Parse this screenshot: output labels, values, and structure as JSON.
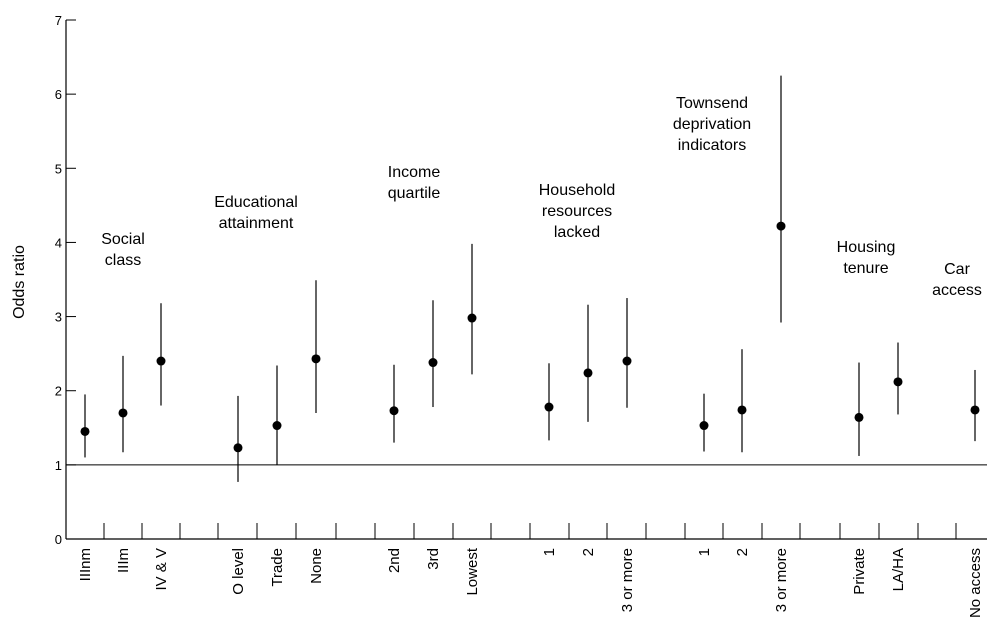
{
  "chart_data": {
    "type": "scatter",
    "title": "",
    "xlabel": "",
    "ylabel": "Odds ratio",
    "ylim": [
      0,
      7
    ],
    "yticks": [
      0,
      1,
      2,
      3,
      4,
      5,
      6,
      7
    ],
    "reference_line": 1,
    "grid": false,
    "groups": [
      {
        "label": [
          "Social",
          "class"
        ],
        "items": [
          {
            "category": "IIInm",
            "or": 1.45,
            "lower": 1.1,
            "upper": 1.95
          },
          {
            "category": "IIIm",
            "or": 1.7,
            "lower": 1.17,
            "upper": 2.47
          },
          {
            "category": "IV & V",
            "or": 2.4,
            "lower": 1.8,
            "upper": 3.18
          }
        ]
      },
      {
        "label": [
          "Educational",
          "attainment"
        ],
        "items": [
          {
            "category": "O level",
            "or": 1.23,
            "lower": 0.77,
            "upper": 1.93
          },
          {
            "category": "Trade",
            "or": 1.53,
            "lower": 1.0,
            "upper": 2.34
          },
          {
            "category": "None",
            "or": 2.43,
            "lower": 1.7,
            "upper": 3.49
          }
        ]
      },
      {
        "label": [
          "Income",
          "quartile"
        ],
        "items": [
          {
            "category": "2nd",
            "or": 1.73,
            "lower": 1.3,
            "upper": 2.35
          },
          {
            "category": "3rd",
            "or": 2.38,
            "lower": 1.78,
            "upper": 3.22
          },
          {
            "category": "Lowest",
            "or": 2.98,
            "lower": 2.22,
            "upper": 3.98
          }
        ]
      },
      {
        "label": [
          "Household",
          "resources",
          "lacked"
        ],
        "items": [
          {
            "category": "1",
            "or": 1.78,
            "lower": 1.33,
            "upper": 2.37
          },
          {
            "category": "2",
            "or": 2.24,
            "lower": 1.58,
            "upper": 3.16
          },
          {
            "category": "3 or more",
            "or": 2.4,
            "lower": 1.77,
            "upper": 3.25
          }
        ]
      },
      {
        "label": [
          "Townsend",
          "deprivation",
          "indicators"
        ],
        "items": [
          {
            "category": "1",
            "or": 1.53,
            "lower": 1.18,
            "upper": 1.96
          },
          {
            "category": "2",
            "or": 1.74,
            "lower": 1.17,
            "upper": 2.56
          },
          {
            "category": "3 or more",
            "or": 4.22,
            "lower": 2.92,
            "upper": 6.25
          }
        ]
      },
      {
        "label": [
          "Housing",
          "tenure"
        ],
        "items": [
          {
            "category": "Private",
            "or": 1.64,
            "lower": 1.12,
            "upper": 2.38
          },
          {
            "category": "LA/HA",
            "or": 2.12,
            "lower": 1.68,
            "upper": 2.65
          }
        ]
      },
      {
        "label": [
          "Car",
          "access"
        ],
        "items": [
          {
            "category": "No access",
            "or": 1.74,
            "lower": 1.32,
            "upper": 2.28
          }
        ]
      }
    ]
  }
}
